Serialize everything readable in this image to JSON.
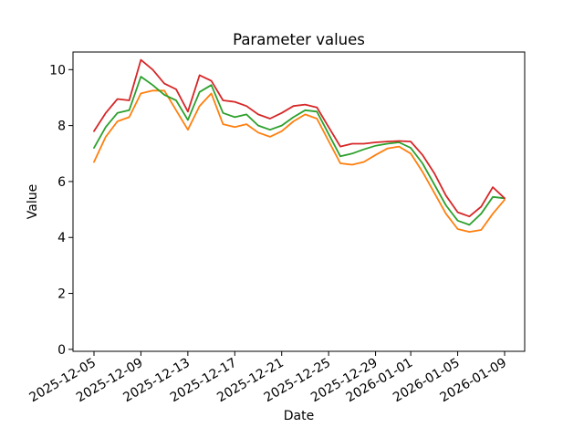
{
  "title": "Parameter values",
  "xlabel": "Date",
  "ylabel": "Value",
  "chart_data": {
    "type": "line",
    "title": "Parameter values",
    "xlabel": "Date",
    "ylabel": "Value",
    "grid": false,
    "legend": "none",
    "ylim": [
      0,
      10.65
    ],
    "y_ticks": [
      0,
      2,
      4,
      6,
      8,
      10
    ],
    "x": [
      "2025-12-05",
      "2025-12-06",
      "2025-12-07",
      "2025-12-08",
      "2025-12-09",
      "2025-12-10",
      "2025-12-11",
      "2025-12-12",
      "2025-12-13",
      "2025-12-14",
      "2025-12-15",
      "2025-12-16",
      "2025-12-17",
      "2025-12-18",
      "2025-12-19",
      "2025-12-20",
      "2025-12-21",
      "2025-12-22",
      "2025-12-23",
      "2025-12-24",
      "2025-12-25",
      "2025-12-26",
      "2025-12-27",
      "2025-12-28",
      "2025-12-29",
      "2025-12-30",
      "2025-12-31",
      "2026-01-01",
      "2026-01-02",
      "2026-01-03",
      "2026-01-04",
      "2026-01-05",
      "2026-01-06",
      "2026-01-07",
      "2026-01-08",
      "2026-01-09"
    ],
    "x_tick_labels": [
      "2025-12-05",
      "2025-12-09",
      "2025-12-13",
      "2025-12-17",
      "2025-12-21",
      "2025-12-25",
      "2025-12-29",
      "2026-01-01",
      "2026-01-05",
      "2026-01-09"
    ],
    "x_tick_indices": [
      0,
      4,
      8,
      12,
      16,
      20,
      24,
      27,
      31,
      35
    ],
    "series": [
      {
        "name": "orange",
        "color": "#ff7f0e",
        "values": [
          6.7,
          7.6,
          8.15,
          8.3,
          9.15,
          9.25,
          9.25,
          8.55,
          7.85,
          8.7,
          9.15,
          8.05,
          7.95,
          8.05,
          7.75,
          7.6,
          7.8,
          8.15,
          8.4,
          8.25,
          7.45,
          6.65,
          6.6,
          6.7,
          6.95,
          7.18,
          7.25,
          7.0,
          6.35,
          5.6,
          4.85,
          4.3,
          4.2,
          4.27,
          4.85,
          5.35
        ]
      },
      {
        "name": "green",
        "color": "#2ca02c",
        "values": [
          7.2,
          7.95,
          8.45,
          8.55,
          9.75,
          9.45,
          9.1,
          8.9,
          8.2,
          9.2,
          9.45,
          8.45,
          8.3,
          8.4,
          8.0,
          7.85,
          8.0,
          8.3,
          8.55,
          8.5,
          7.7,
          6.9,
          7.0,
          7.15,
          7.28,
          7.35,
          7.4,
          7.2,
          6.65,
          5.9,
          5.15,
          4.6,
          4.45,
          4.85,
          5.45,
          5.4
        ]
      },
      {
        "name": "red",
        "color": "#d62728",
        "values": [
          7.8,
          8.45,
          8.95,
          8.9,
          10.35,
          10.0,
          9.5,
          9.3,
          8.5,
          9.8,
          9.6,
          8.9,
          8.85,
          8.7,
          8.4,
          8.25,
          8.45,
          8.7,
          8.75,
          8.65,
          7.95,
          7.25,
          7.35,
          7.35,
          7.4,
          7.43,
          7.45,
          7.43,
          6.95,
          6.3,
          5.5,
          4.9,
          4.75,
          5.1,
          5.8,
          5.4
        ]
      }
    ]
  }
}
